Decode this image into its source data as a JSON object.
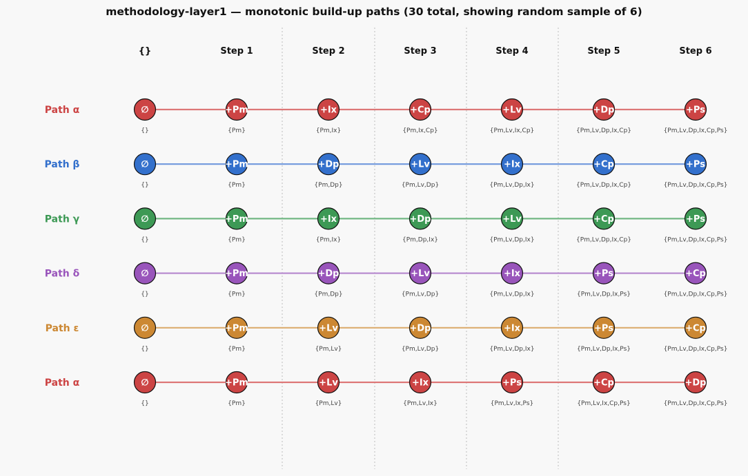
{
  "title": "methodology-layer1 — monotonic build-up paths  (30 total, showing random sample of 6)",
  "columns": [
    "{}",
    "Step 1",
    "Step 2",
    "Step 3",
    "Step 4",
    "Step 5",
    "Step 6"
  ],
  "paths": [
    {
      "label": "Path α",
      "color": "#cc4444",
      "line_color": "#dd7777",
      "nodes": [
        "∅",
        "+Pm",
        "+Ix",
        "+Cp",
        "+Lv",
        "+Dp",
        "+Ps"
      ],
      "sets": [
        "{}",
        "{Pm}",
        "{Pm,Ix}",
        "{Pm,Ix,Cp}",
        "{Pm,Lv,Ix,Cp}",
        "{Pm,Lv,Dp,Ix,Cp}",
        "{Pm,Lv,Dp,Ix,Cp,Ps}"
      ]
    },
    {
      "label": "Path β",
      "color": "#3370cc",
      "line_color": "#6f98dd",
      "nodes": [
        "∅",
        "+Pm",
        "+Dp",
        "+Lv",
        "+Ix",
        "+Cp",
        "+Ps"
      ],
      "sets": [
        "{}",
        "{Pm}",
        "{Pm,Dp}",
        "{Pm,Lv,Dp}",
        "{Pm,Lv,Dp,Ix}",
        "{Pm,Lv,Dp,Ix,Cp}",
        "{Pm,Lv,Dp,Ix,Cp,Ps}"
      ]
    },
    {
      "label": "Path γ",
      "color": "#3d9955",
      "line_color": "#72b784",
      "nodes": [
        "∅",
        "+Pm",
        "+Ix",
        "+Dp",
        "+Lv",
        "+Cp",
        "+Ps"
      ],
      "sets": [
        "{}",
        "{Pm}",
        "{Pm,Ix}",
        "{Pm,Dp,Ix}",
        "{Pm,Lv,Dp,Ix}",
        "{Pm,Lv,Dp,Ix,Cp}",
        "{Pm,Lv,Dp,Ix,Cp,Ps}"
      ]
    },
    {
      "label": "Path δ",
      "color": "#9955bb",
      "line_color": "#b88dd0",
      "nodes": [
        "∅",
        "+Pm",
        "+Dp",
        "+Lv",
        "+Ix",
        "+Ps",
        "+Cp"
      ],
      "sets": [
        "{}",
        "{Pm}",
        "{Pm,Dp}",
        "{Pm,Lv,Dp}",
        "{Pm,Lv,Dp,Ix}",
        "{Pm,Lv,Dp,Ix,Ps}",
        "{Pm,Lv,Dp,Ix,Cp,Ps}"
      ]
    },
    {
      "label": "Path ε",
      "color": "#cc8833",
      "line_color": "#dcac6f",
      "nodes": [
        "∅",
        "+Pm",
        "+Lv",
        "+Dp",
        "+Ix",
        "+Ps",
        "+Cp"
      ],
      "sets": [
        "{}",
        "{Pm}",
        "{Pm,Lv}",
        "{Pm,Lv,Dp}",
        "{Pm,Lv,Dp,Ix}",
        "{Pm,Lv,Dp,Ix,Ps}",
        "{Pm,Lv,Dp,Ix,Cp,Ps}"
      ]
    },
    {
      "label": "Path α",
      "color": "#cc4444",
      "line_color": "#dd7777",
      "nodes": [
        "∅",
        "+Pm",
        "+Lv",
        "+Ix",
        "+Ps",
        "+Cp",
        "+Dp"
      ],
      "sets": [
        "{}",
        "{Pm}",
        "{Pm,Lv}",
        "{Pm,Lv,Ix}",
        "{Pm,Lv,Ix,Ps}",
        "{Pm,Lv,Ix,Cp,Ps}",
        "{Pm,Lv,Dp,Ix,Cp,Ps}"
      ]
    }
  ]
}
